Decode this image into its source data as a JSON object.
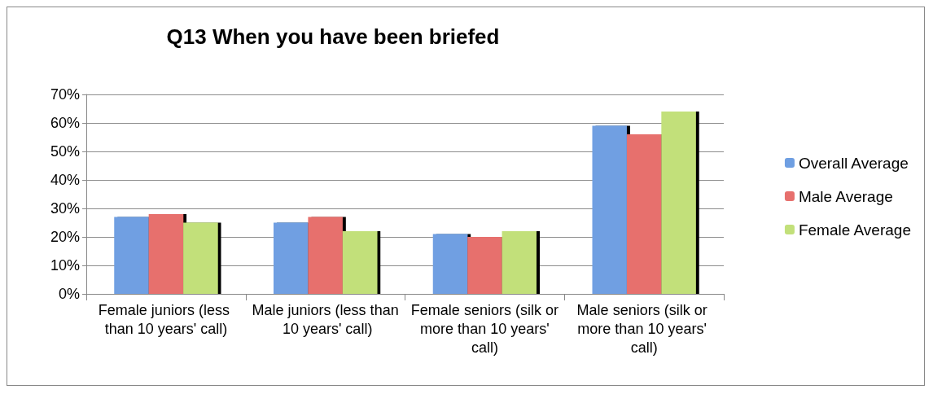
{
  "chart_data": {
    "type": "bar",
    "title": "Q13 When you have been briefed",
    "categories": [
      "Female juniors (less than 10 years' call)",
      "Male juniors (less than 10 years' call)",
      "Female seniors (silk or more than 10 years' call)",
      "Male seniors (silk or more than 10 years' call)"
    ],
    "series": [
      {
        "name": "Overall Average",
        "color": "#6f9fe2",
        "values": [
          27,
          25,
          21,
          59
        ]
      },
      {
        "name": "Male Average",
        "color": "#e7706d",
        "values": [
          28,
          27,
          20,
          56
        ]
      },
      {
        "name": "Female Average",
        "color": "#c2e07a",
        "values": [
          25,
          22,
          22,
          64
        ]
      }
    ],
    "ylim": [
      0,
      70
    ],
    "yticks": [
      {
        "value": 0,
        "label": "0%"
      },
      {
        "value": 10,
        "label": "10%"
      },
      {
        "value": 20,
        "label": "20%"
      },
      {
        "value": 30,
        "label": "30%"
      },
      {
        "value": 40,
        "label": "40%"
      },
      {
        "value": 50,
        "label": "50%"
      },
      {
        "value": 60,
        "label": "60%"
      },
      {
        "value": 70,
        "label": "70%"
      }
    ],
    "grid": "y",
    "legend": "right"
  }
}
